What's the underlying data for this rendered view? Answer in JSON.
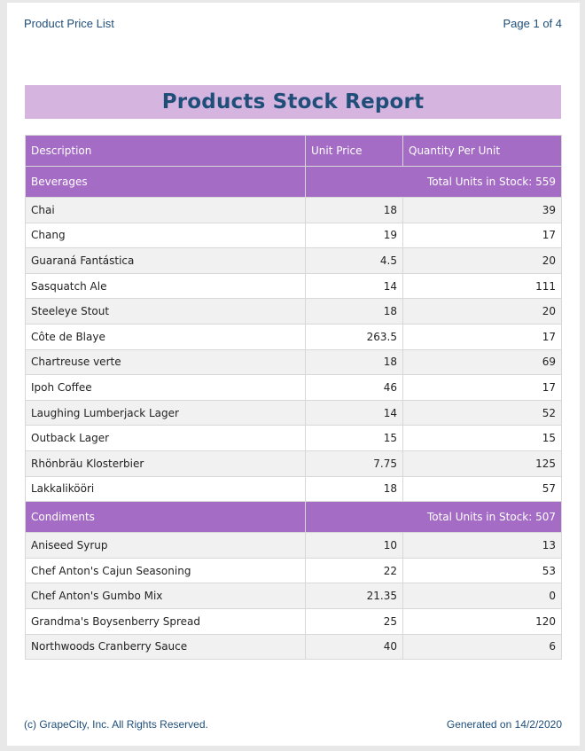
{
  "header": {
    "title": "Product Price List",
    "page_info": "Page 1 of 4"
  },
  "report": {
    "title": "Products Stock Report",
    "columns": [
      "Description",
      "Unit Price",
      "Quantity Per Unit"
    ],
    "groups": [
      {
        "name": "Beverages",
        "total": "Total Units in Stock: 559",
        "rows": [
          [
            "Chai",
            "18",
            "39"
          ],
          [
            "Chang",
            "19",
            "17"
          ],
          [
            "Guaraná Fantástica",
            "4.5",
            "20"
          ],
          [
            "Sasquatch Ale",
            "14",
            "111"
          ],
          [
            "Steeleye Stout",
            "18",
            "20"
          ],
          [
            "Côte de Blaye",
            "263.5",
            "17"
          ],
          [
            "Chartreuse verte",
            "18",
            "69"
          ],
          [
            "Ipoh Coffee",
            "46",
            "17"
          ],
          [
            "Laughing Lumberjack Lager",
            "14",
            "52"
          ],
          [
            "Outback Lager",
            "15",
            "15"
          ],
          [
            "Rhönbräu Klosterbier",
            "7.75",
            "125"
          ],
          [
            "Lakkalikööri",
            "18",
            "57"
          ]
        ]
      },
      {
        "name": "Condiments",
        "total": "Total Units in Stock: 507",
        "rows": [
          [
            "Aniseed Syrup",
            "10",
            "13"
          ],
          [
            "Chef Anton's Cajun Seasoning",
            "22",
            "53"
          ],
          [
            "Chef Anton's Gumbo Mix",
            "21.35",
            "0"
          ],
          [
            "Grandma's Boysenberry Spread",
            "25",
            "120"
          ],
          [
            "Northwoods Cranberry Sauce",
            "40",
            "6"
          ]
        ]
      }
    ]
  },
  "footer": {
    "copyright": "(c) GrapeCity, Inc. All Rights Reserved.",
    "generated": "Generated on 14/2/2020"
  },
  "colors": {
    "title_band": "#d5b5df",
    "header_band": "#a46cc4",
    "text_blue": "#1f4e79"
  }
}
